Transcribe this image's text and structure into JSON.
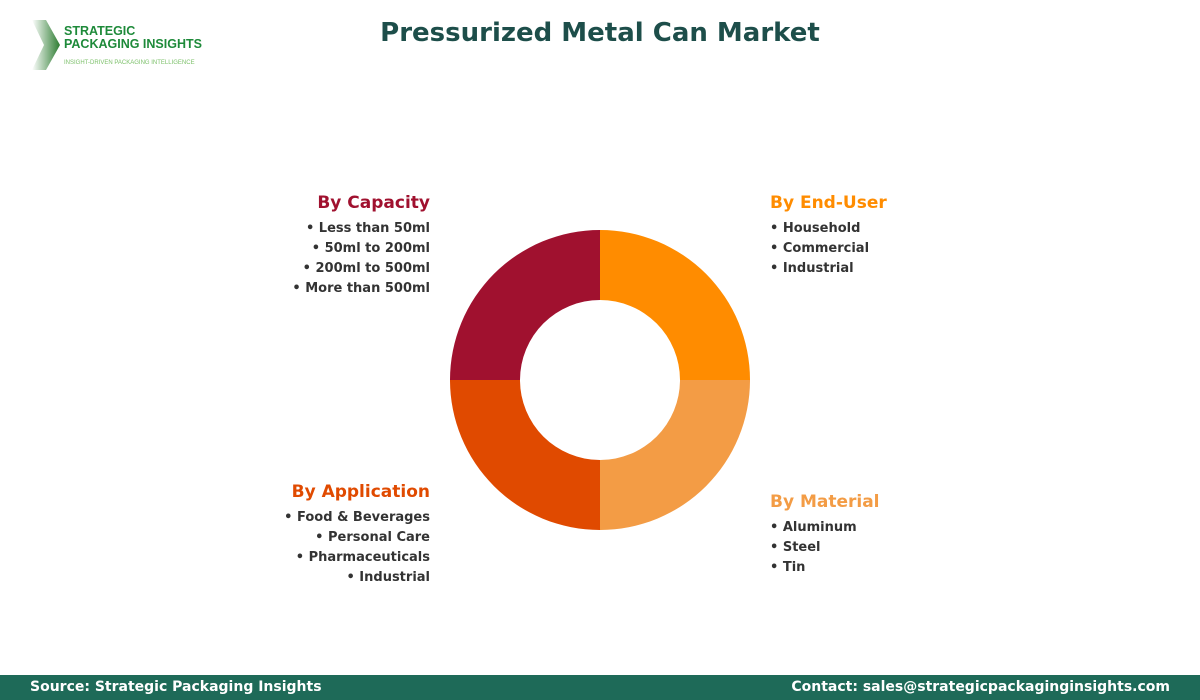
{
  "title": "Pressurized Metal Can Market",
  "logo": {
    "line1": "STRATEGIC",
    "line2": "PACKAGING INSIGHTS",
    "tagline": "INSIGHT-DRIVEN PACKAGING INTELLIGENCE"
  },
  "segments": [
    {
      "title": "By Capacity",
      "color": "#A0112F",
      "items": [
        "Less than 50ml",
        "50ml to 200ml",
        "200ml to 500ml",
        "More than 500ml"
      ]
    },
    {
      "title": "By End-User",
      "color": "#FF8C00",
      "items": [
        "Household",
        "Commercial",
        "Industrial"
      ]
    },
    {
      "title": "By Application",
      "color": "#E04A00",
      "items": [
        "Food & Beverages",
        "Personal Care",
        "Pharmaceuticals",
        "Industrial"
      ]
    },
    {
      "title": "By Material",
      "color": "#F39C45",
      "items": [
        "Aluminum",
        "Steel",
        "Tin"
      ]
    }
  ],
  "footer": {
    "source": "Source: Strategic Packaging Insights",
    "contact": "Contact: sales@strategicpackaginginsights.com"
  }
}
